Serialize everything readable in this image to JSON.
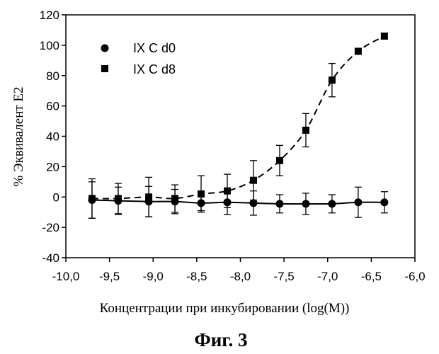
{
  "chart_data": {
    "type": "scatter",
    "xlabel": "Концентрации при инкубировании (log(M))",
    "ylabel": "% Эквивалент E2",
    "caption": "Фиг. 3",
    "xlim": [
      -10.0,
      -6.0
    ],
    "ylim": [
      -40,
      120
    ],
    "x_ticks": [
      -10.0,
      -9.5,
      -9.0,
      -8.5,
      -8.0,
      -7.5,
      -7.0,
      -6.5,
      -6.0
    ],
    "x_tick_labels": [
      "-10,0",
      "-9,5",
      "-9,0",
      "-8,5",
      "-8,0",
      "-7,5",
      "-7,0",
      "-6,5",
      "-6,0"
    ],
    "y_ticks": [
      -40,
      -20,
      0,
      20,
      40,
      60,
      80,
      100,
      120
    ],
    "y_tick_labels": [
      "-40",
      "-20",
      "0",
      "20",
      "40",
      "60",
      "80",
      "100",
      "120"
    ],
    "grid": false,
    "legend_position": "top-left",
    "series": [
      {
        "name": "IX C d0",
        "marker": "circle",
        "fit_line": "solid",
        "points": [
          {
            "x": -9.7,
            "y": -2,
            "err": 12
          },
          {
            "x": -9.4,
            "y": -2.5,
            "err": 9
          },
          {
            "x": -9.05,
            "y": -3,
            "err": 10
          },
          {
            "x": -8.75,
            "y": -3,
            "err": 8
          },
          {
            "x": -8.45,
            "y": -4,
            "err": 5
          },
          {
            "x": -8.15,
            "y": -3.5,
            "err": 8
          },
          {
            "x": -7.85,
            "y": -4,
            "err": 8
          },
          {
            "x": -7.55,
            "y": -4.5,
            "err": 6
          },
          {
            "x": -7.25,
            "y": -4.5,
            "err": 7
          },
          {
            "x": -6.95,
            "y": -4.5,
            "err": 6
          },
          {
            "x": -6.65,
            "y": -3.5,
            "err": 10
          },
          {
            "x": -6.35,
            "y": -3.5,
            "err": 7
          }
        ]
      },
      {
        "name": "IX C d8",
        "marker": "square",
        "fit_line": "dashed",
        "points": [
          {
            "x": -9.7,
            "y": -1,
            "err": 13
          },
          {
            "x": -9.4,
            "y": -1,
            "err": 10
          },
          {
            "x": -9.05,
            "y": 0,
            "err": 13
          },
          {
            "x": -8.75,
            "y": -1,
            "err": 9
          },
          {
            "x": -8.45,
            "y": 2,
            "err": 12
          },
          {
            "x": -8.15,
            "y": 4,
            "err": 11
          },
          {
            "x": -7.85,
            "y": 11,
            "err": 13
          },
          {
            "x": -7.55,
            "y": 24,
            "err": 10
          },
          {
            "x": -7.25,
            "y": 44,
            "err": 11
          },
          {
            "x": -6.95,
            "y": 77,
            "err": 11
          },
          {
            "x": -6.65,
            "y": 96,
            "err": 2
          },
          {
            "x": -6.35,
            "y": 106,
            "err": 2
          }
        ]
      }
    ]
  }
}
